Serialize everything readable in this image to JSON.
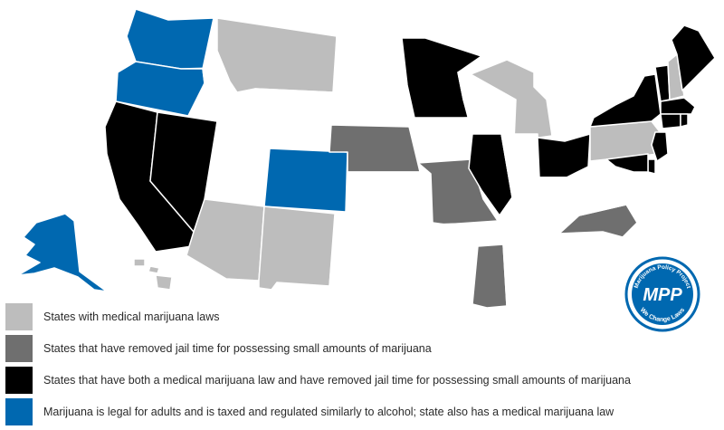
{
  "colors": {
    "none": "#ffffff",
    "medical": "#bdbdbd",
    "decriminalized": "#6f6f6f",
    "both": "#000000",
    "legal": "#0068b0",
    "border": "#e4e4e4"
  },
  "states": [
    {
      "id": "WA",
      "status": "legal"
    },
    {
      "id": "OR",
      "status": "legal"
    },
    {
      "id": "CA",
      "status": "both"
    },
    {
      "id": "NV",
      "status": "both"
    },
    {
      "id": "ID",
      "status": "none"
    },
    {
      "id": "MT",
      "status": "medical"
    },
    {
      "id": "WY",
      "status": "none"
    },
    {
      "id": "UT",
      "status": "none"
    },
    {
      "id": "CO",
      "status": "legal"
    },
    {
      "id": "AZ",
      "status": "medical"
    },
    {
      "id": "NM",
      "status": "medical"
    },
    {
      "id": "ND",
      "status": "none"
    },
    {
      "id": "SD",
      "status": "none"
    },
    {
      "id": "NE",
      "status": "decriminalized"
    },
    {
      "id": "KS",
      "status": "none"
    },
    {
      "id": "OK",
      "status": "none"
    },
    {
      "id": "TX",
      "status": "none"
    },
    {
      "id": "MN",
      "status": "both"
    },
    {
      "id": "IA",
      "status": "none"
    },
    {
      "id": "MO",
      "status": "decriminalized"
    },
    {
      "id": "AR",
      "status": "none"
    },
    {
      "id": "LA",
      "status": "none"
    },
    {
      "id": "WI",
      "status": "none"
    },
    {
      "id": "IL",
      "status": "both"
    },
    {
      "id": "MI",
      "status": "medical"
    },
    {
      "id": "IN",
      "status": "none"
    },
    {
      "id": "OH",
      "status": "both"
    },
    {
      "id": "KY",
      "status": "none"
    },
    {
      "id": "TN",
      "status": "none"
    },
    {
      "id": "MS",
      "status": "decriminalized"
    },
    {
      "id": "AL",
      "status": "none"
    },
    {
      "id": "GA",
      "status": "none"
    },
    {
      "id": "FL",
      "status": "none"
    },
    {
      "id": "SC",
      "status": "none"
    },
    {
      "id": "NC",
      "status": "decriminalized"
    },
    {
      "id": "VA",
      "status": "none"
    },
    {
      "id": "WV",
      "status": "none"
    },
    {
      "id": "PA",
      "status": "medical"
    },
    {
      "id": "NY",
      "status": "both"
    },
    {
      "id": "VT",
      "status": "both"
    },
    {
      "id": "NH",
      "status": "medical"
    },
    {
      "id": "ME",
      "status": "both"
    },
    {
      "id": "MA",
      "status": "both"
    },
    {
      "id": "CT",
      "status": "both"
    },
    {
      "id": "RI",
      "status": "both"
    },
    {
      "id": "NJ",
      "status": "both"
    },
    {
      "id": "DE",
      "status": "both"
    },
    {
      "id": "MD",
      "status": "both"
    },
    {
      "id": "AK",
      "status": "legal"
    },
    {
      "id": "HI",
      "status": "medical"
    }
  ],
  "legend": [
    {
      "status": "medical",
      "label": "States with medical marijuana laws"
    },
    {
      "status": "decriminalized",
      "label": "States that have removed jail time for possessing small amounts of marijuana"
    },
    {
      "status": "both",
      "label": "States that have both a medical marijuana law and have removed jail time for possessing small amounts of marijuana"
    },
    {
      "status": "legal",
      "label": "Marijuana is legal for adults and is taxed and regulated similarly to alcohol; state also has a medical marijuana law"
    }
  ],
  "logo": {
    "top_text": "Marijuana Policy Project",
    "initials": "MPP",
    "bottom_text": "We Change Laws"
  }
}
